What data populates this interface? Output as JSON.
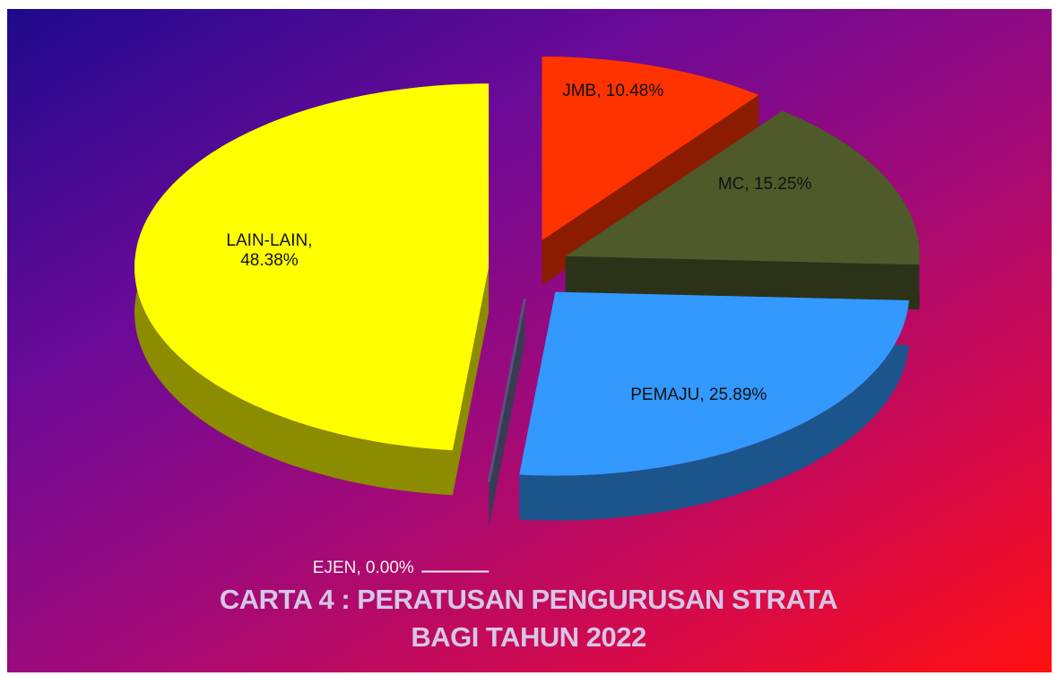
{
  "chart_data": {
    "type": "pie",
    "title": "CARTA 4 : PERATUSAN PENGURUSAN STRATA\nBAGI TAHUN 2022",
    "categories": [
      "JMB",
      "MC",
      "PEMAJU",
      "EJEN",
      "LAIN-LAIN"
    ],
    "values": [
      10.48,
      15.25,
      25.89,
      0.0,
      48.38
    ],
    "value_labels": [
      "JMB, 10.48%",
      "MC, 15.25%",
      "PEMAJU,  25.89%",
      "EJEN, 0.00%",
      "LAIN-LAIN,\n48.38%"
    ],
    "colors": [
      "#ff3300",
      "#4f5a2a",
      "#3399ff",
      "#6a6a9a",
      "#ffff00"
    ],
    "three_d": true,
    "exploded": true
  }
}
